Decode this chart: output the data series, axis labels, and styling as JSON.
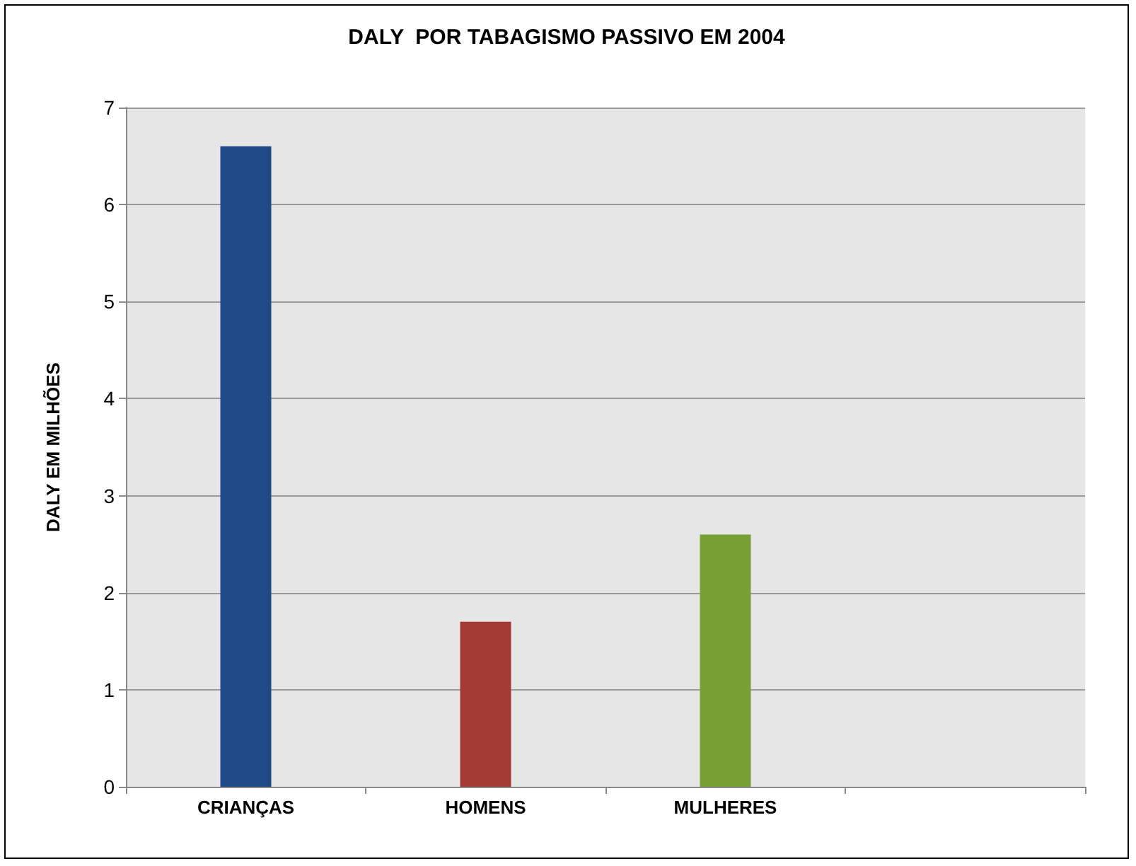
{
  "chart_data": {
    "type": "bar",
    "title": "DALY  POR TABAGISMO PASSIVO EM 2004",
    "ylabel": "DALY EM MILHÕES",
    "categories": [
      "CRIANÇAS",
      "HOMENS",
      "MULHERES",
      null
    ],
    "values": [
      6.6,
      1.7,
      2.6,
      null
    ],
    "colors": [
      "#1f4a85",
      "#a33a36",
      "#76a035",
      null
    ],
    "ylim": [
      0,
      7
    ],
    "yticks": [
      0,
      1,
      2,
      3,
      4,
      5,
      6,
      7
    ],
    "grid": "y"
  }
}
